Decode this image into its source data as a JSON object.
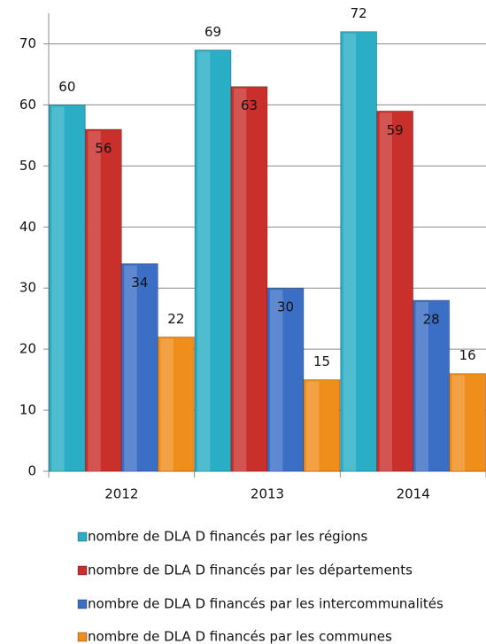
{
  "chart_data": {
    "type": "bar",
    "categories": [
      "2012",
      "2013",
      "2014"
    ],
    "series": [
      {
        "name": "nombre de DLA D financés par les régions",
        "color": "#2aaec6",
        "values": [
          60,
          69,
          72
        ]
      },
      {
        "name": "nombre de DLA D financés par les départements",
        "color": "#c9302c",
        "values": [
          56,
          63,
          59
        ]
      },
      {
        "name": "nombre de DLA D financés par les intercommunalités",
        "color": "#3b6fc6",
        "values": [
          34,
          30,
          28
        ]
      },
      {
        "name": "nombre de DLA D financés par les communes",
        "color": "#f08e1c",
        "values": [
          22,
          15,
          16
        ]
      }
    ],
    "ylim": [
      0,
      75
    ],
    "yticks": [
      0,
      10,
      20,
      30,
      40,
      50,
      60,
      70
    ],
    "grid": true
  }
}
